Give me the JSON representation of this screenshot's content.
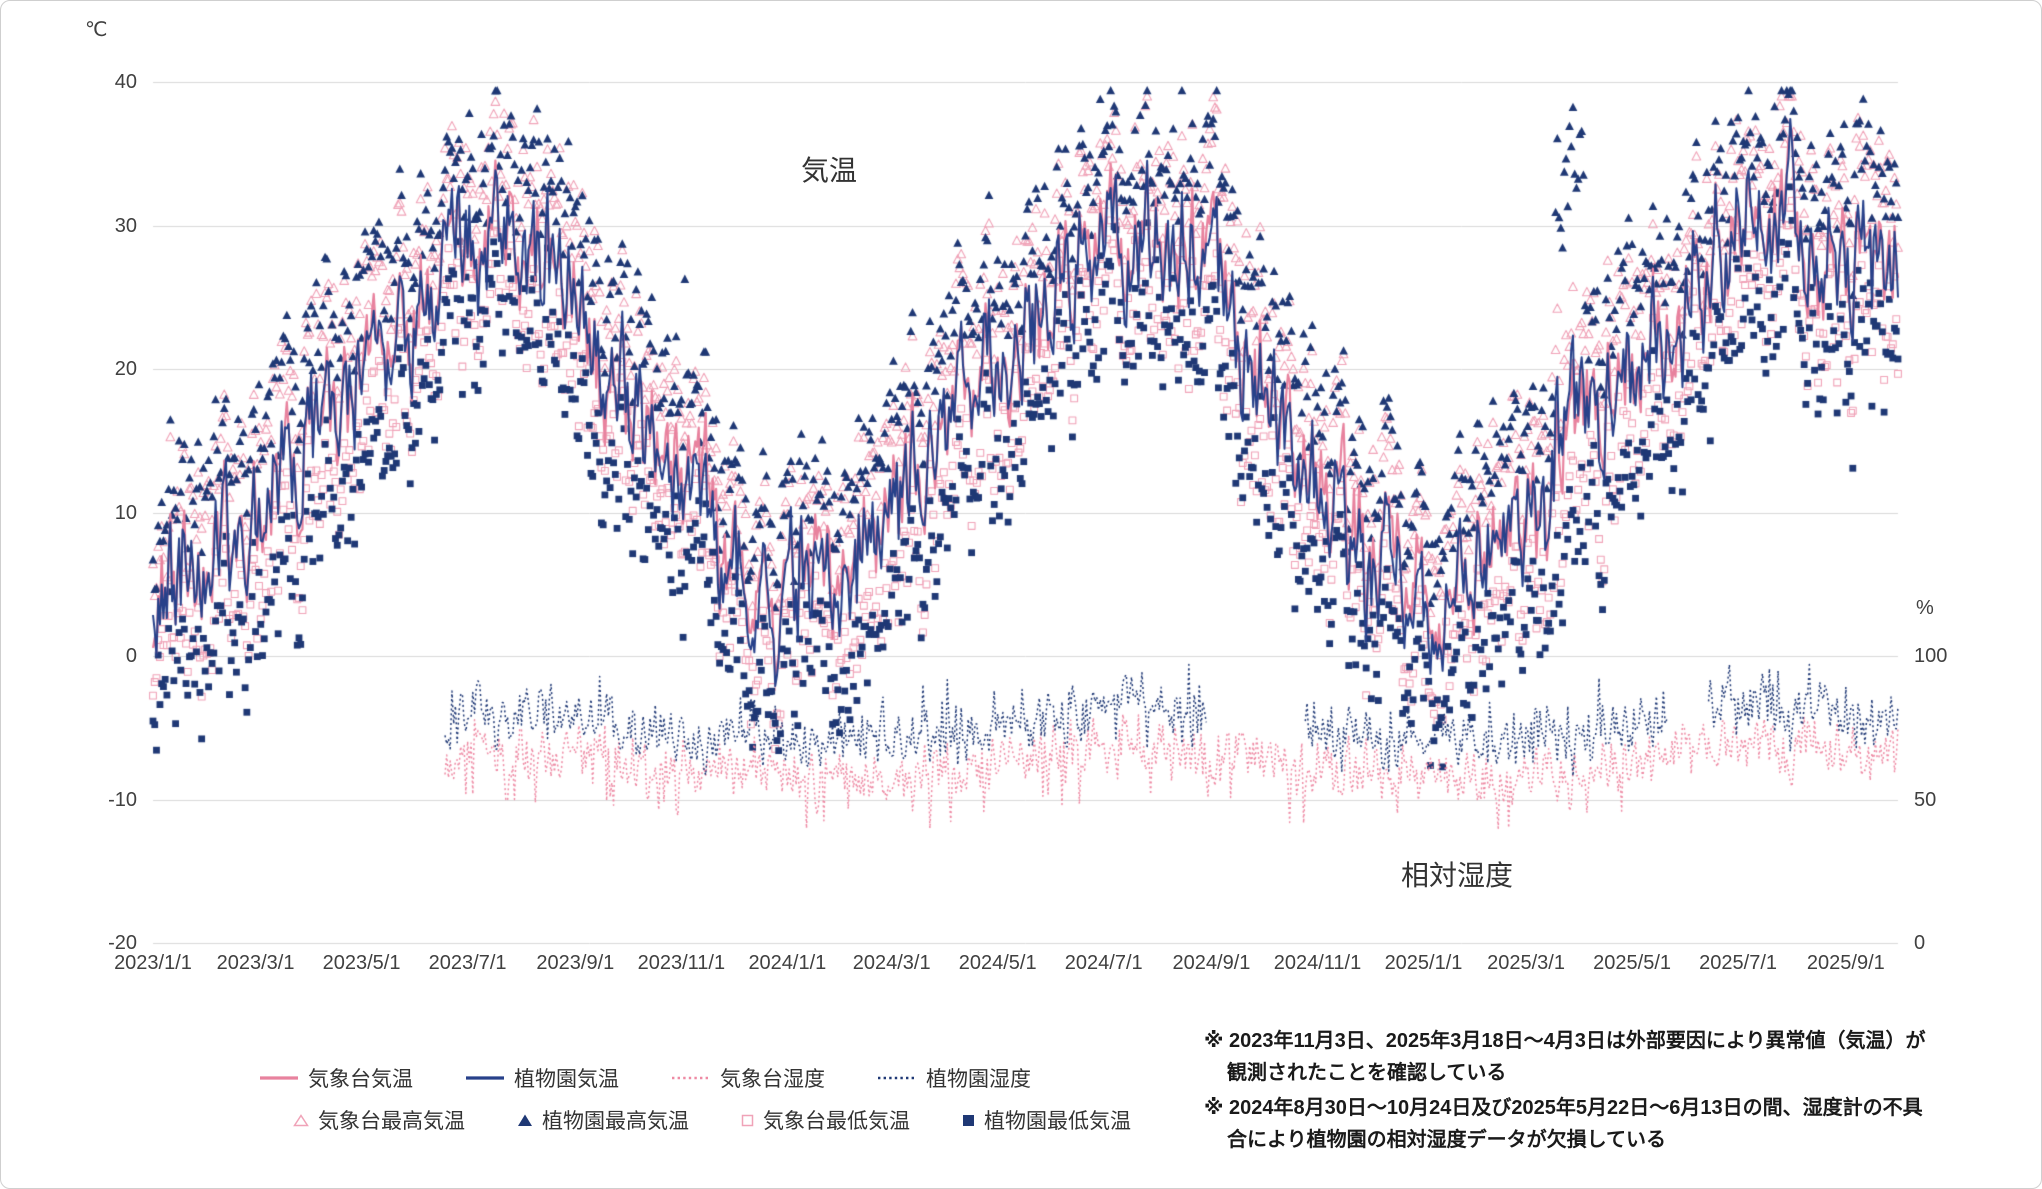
{
  "chart": {
    "unit_left": "℃",
    "unit_right": "%",
    "title_temperature": "気温",
    "title_humidity": "相対湿度",
    "colors": {
      "gridline": "#d9d9d9",
      "axis_text": "#404040",
      "pink_line": "#e8829e",
      "pink_marker": "#f0a3b8",
      "pink_dotted": "#ee8aa4",
      "blue_line": "#27418a",
      "blue_marker": "#1f3875",
      "blue_dotted": "#1f3875"
    }
  },
  "chart_data": {
    "type": "line+scatter",
    "x_tick_labels": [
      "2023/1/1",
      "2023/3/1",
      "2023/5/1",
      "2023/7/1",
      "2023/9/1",
      "2023/11/1",
      "2024/1/1",
      "2024/3/1",
      "2024/5/1",
      "2024/7/1",
      "2024/9/1",
      "2024/11/1",
      "2025/1/1",
      "2025/3/1",
      "2025/5/1",
      "2025/7/1",
      "2025/9/1"
    ],
    "y_left_ticks": [
      40,
      30,
      20,
      10,
      0,
      -10,
      -20
    ],
    "y_right_ticks": [
      100,
      50,
      0
    ],
    "y_left_range": [
      -20,
      40
    ],
    "y_right_range": [
      0,
      100
    ],
    "date_start": "2023-01-01",
    "date_end": "2025-10-01",
    "humidity_start": "2023-06-18",
    "noise_seed": 7,
    "series": [
      {
        "label": "気象台気温",
        "marker": "line",
        "color": "#e8829e"
      },
      {
        "label": "植物園気温",
        "marker": "line",
        "color": "#27418a"
      },
      {
        "label": "気象台湿度",
        "marker": "dotted-line",
        "color": "#ee8aa4"
      },
      {
        "label": "植物園湿度",
        "marker": "dotted-line",
        "color": "#1f3875"
      },
      {
        "label": "気象台最高気温",
        "marker": "triangle-open",
        "color": "#f0a3b8"
      },
      {
        "label": "植物園最高気温",
        "marker": "triangle-filled",
        "color": "#1f3875"
      },
      {
        "label": "気象台最低気温",
        "marker": "square-open",
        "color": "#f0a3b8"
      },
      {
        "label": "植物園最低気温",
        "marker": "square-filled",
        "color": "#1f3875"
      }
    ],
    "monthly_anchors": {
      "months": [
        "2023-01",
        "2023-02",
        "2023-03",
        "2023-04",
        "2023-05",
        "2023-06",
        "2023-07",
        "2023-08",
        "2023-09",
        "2023-10",
        "2023-11",
        "2023-12",
        "2024-01",
        "2024-02",
        "2024-03",
        "2024-04",
        "2024-05",
        "2024-06",
        "2024-07",
        "2024-08",
        "2024-09",
        "2024-10",
        "2024-11",
        "2024-12",
        "2025-01",
        "2025-02",
        "2025-03",
        "2025-04",
        "2025-05",
        "2025-06",
        "2025-07",
        "2025-08",
        "2025-09"
      ],
      "気象台気温": [
        5,
        6,
        10,
        15,
        20,
        24,
        29,
        30,
        26,
        18,
        12,
        7,
        5,
        7,
        10,
        16,
        21,
        25,
        30,
        30,
        27,
        19,
        12,
        7,
        5,
        6,
        10,
        16,
        21,
        25,
        30,
        31,
        27
      ],
      "植物園気温": [
        5,
        6,
        10,
        15,
        20,
        24,
        29,
        30,
        26,
        18,
        11,
        6,
        5,
        6,
        10,
        16,
        21,
        25,
        29,
        30,
        26,
        19,
        11,
        6,
        4,
        6,
        10,
        15,
        21,
        25,
        30,
        31,
        27
      ],
      "気象台最高気温": [
        9,
        11,
        15,
        20,
        25,
        28,
        33,
        35,
        31,
        23,
        16,
        11,
        9,
        11,
        15,
        21,
        26,
        29,
        34,
        35,
        32,
        24,
        16,
        11,
        9,
        11,
        15,
        21,
        26,
        29,
        34,
        35,
        32
      ],
      "植物園最高気温": [
        10,
        12,
        16,
        21,
        26,
        29,
        34,
        36,
        32,
        24,
        17,
        12,
        10,
        12,
        16,
        22,
        27,
        30,
        35,
        36,
        33,
        25,
        17,
        12,
        10,
        12,
        16,
        22,
        27,
        30,
        35,
        36,
        33
      ],
      "気象台最低気温": [
        1,
        2,
        5,
        10,
        15,
        20,
        25,
        26,
        22,
        14,
        8,
        3,
        1,
        2,
        5,
        11,
        16,
        21,
        26,
        26,
        22,
        14,
        8,
        3,
        1,
        2,
        5,
        10,
        16,
        21,
        26,
        27,
        23
      ],
      "植物園最低気温": [
        -1,
        0,
        3,
        8,
        13,
        18,
        24,
        25,
        20,
        12,
        6,
        1,
        -1,
        0,
        3,
        9,
        14,
        19,
        24,
        25,
        20,
        12,
        6,
        1,
        -1,
        0,
        3,
        8,
        14,
        19,
        24,
        25,
        21
      ],
      "気象台湿度": [
        60,
        58,
        58,
        60,
        62,
        64,
        68,
        66,
        65,
        63,
        62,
        60,
        58,
        57,
        58,
        60,
        62,
        66,
        70,
        68,
        66,
        64,
        62,
        60,
        58,
        57,
        58,
        60,
        62,
        66,
        70,
        68,
        66
      ],
      "植物園湿度": [
        70,
        68,
        68,
        70,
        72,
        76,
        80,
        78,
        77,
        75,
        74,
        72,
        70,
        69,
        70,
        72,
        74,
        78,
        82,
        80,
        78,
        76,
        74,
        72,
        70,
        69,
        70,
        72,
        74,
        78,
        82,
        80,
        78
      ]
    },
    "humidity_gaps": [
      [
        "2024-08-30",
        "2024-10-24"
      ],
      [
        "2025-05-22",
        "2025-06-13"
      ]
    ],
    "temperature_anomalies": [
      [
        "2023-11-03",
        "2023-11-03"
      ],
      [
        "2025-03-18",
        "2025-04-03"
      ]
    ]
  },
  "notes": [
    "※ 2023年11月3日、2025年3月18日～4月3日は外部要因により異常値（気温）が観測されたことを確認している",
    "※ 2024年8月30日～10月24日及び2025年5月22日～6月13日の間、湿度計の不具合により植物園の相対湿度データが欠損している"
  ]
}
